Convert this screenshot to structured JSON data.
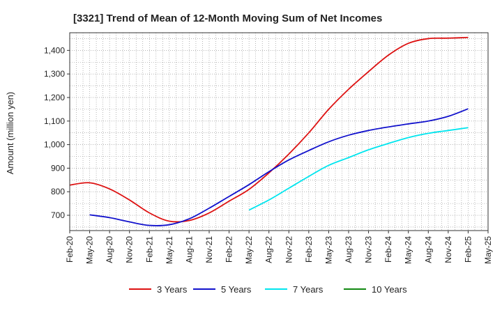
{
  "chart_data": {
    "type": "line",
    "title": "[3321]  Trend of Mean of 12-Month Moving Sum of Net Incomes",
    "xlabel": "",
    "ylabel": "Amount (million yen)",
    "ylim": [
      635,
      1475
    ],
    "yticks": [
      700,
      800,
      900,
      1000,
      1100,
      1200,
      1300,
      1400
    ],
    "ytick_labels": [
      "700",
      "800",
      "900",
      "1,000",
      "1,100",
      "1,200",
      "1,300",
      "1,400"
    ],
    "x_tick_labels": [
      "Feb-20",
      "May-20",
      "Aug-20",
      "Nov-20",
      "Feb-21",
      "May-21",
      "Aug-21",
      "Nov-21",
      "Feb-22",
      "May-22",
      "Aug-22",
      "Nov-22",
      "Feb-23",
      "May-23",
      "Aug-23",
      "Nov-23",
      "Feb-24",
      "May-24",
      "Aug-24",
      "Nov-24",
      "Feb-25",
      "May-25"
    ],
    "grid": true,
    "legend_position": "bottom",
    "series": [
      {
        "name": "3 Years",
        "color": "#dd1111",
        "points": [
          [
            "Feb-20",
            828
          ],
          [
            "May-20",
            838
          ],
          [
            "Aug-20",
            812
          ],
          [
            "Nov-20",
            765
          ],
          [
            "Feb-21",
            710
          ],
          [
            "May-21",
            675
          ],
          [
            "Aug-21",
            678
          ],
          [
            "Nov-21",
            710
          ],
          [
            "Feb-22",
            760
          ],
          [
            "May-22",
            810
          ],
          [
            "Aug-22",
            880
          ],
          [
            "Nov-22",
            960
          ],
          [
            "Feb-23",
            1050
          ],
          [
            "May-23",
            1150
          ],
          [
            "Aug-23",
            1235
          ],
          [
            "Nov-23",
            1310
          ],
          [
            "Feb-24",
            1380
          ],
          [
            "May-24",
            1430
          ],
          [
            "Aug-24",
            1450
          ],
          [
            "Nov-24",
            1452
          ],
          [
            "Feb-25",
            1455
          ]
        ]
      },
      {
        "name": "5 Years",
        "color": "#1111cc",
        "points": [
          [
            "May-20",
            702
          ],
          [
            "Aug-20",
            690
          ],
          [
            "Nov-20",
            672
          ],
          [
            "Feb-21",
            657
          ],
          [
            "May-21",
            660
          ],
          [
            "Aug-21",
            685
          ],
          [
            "Nov-21",
            730
          ],
          [
            "Feb-22",
            780
          ],
          [
            "May-22",
            830
          ],
          [
            "Aug-22",
            885
          ],
          [
            "Nov-22",
            935
          ],
          [
            "Feb-23",
            975
          ],
          [
            "May-23",
            1012
          ],
          [
            "Aug-23",
            1040
          ],
          [
            "Nov-23",
            1060
          ],
          [
            "Feb-24",
            1075
          ],
          [
            "May-24",
            1088
          ],
          [
            "Aug-24",
            1100
          ],
          [
            "Nov-24",
            1120
          ],
          [
            "Feb-25",
            1152
          ]
        ]
      },
      {
        "name": "7 Years",
        "color": "#00e5ee",
        "points": [
          [
            "May-22",
            722
          ],
          [
            "Aug-22",
            765
          ],
          [
            "Nov-22",
            815
          ],
          [
            "Feb-23",
            865
          ],
          [
            "May-23",
            912
          ],
          [
            "Aug-23",
            945
          ],
          [
            "Nov-23",
            978
          ],
          [
            "Feb-24",
            1005
          ],
          [
            "May-24",
            1030
          ],
          [
            "Aug-24",
            1048
          ],
          [
            "Nov-24",
            1060
          ],
          [
            "Feb-25",
            1072
          ]
        ]
      },
      {
        "name": "10 Years",
        "color": "#118811",
        "points": []
      }
    ]
  }
}
